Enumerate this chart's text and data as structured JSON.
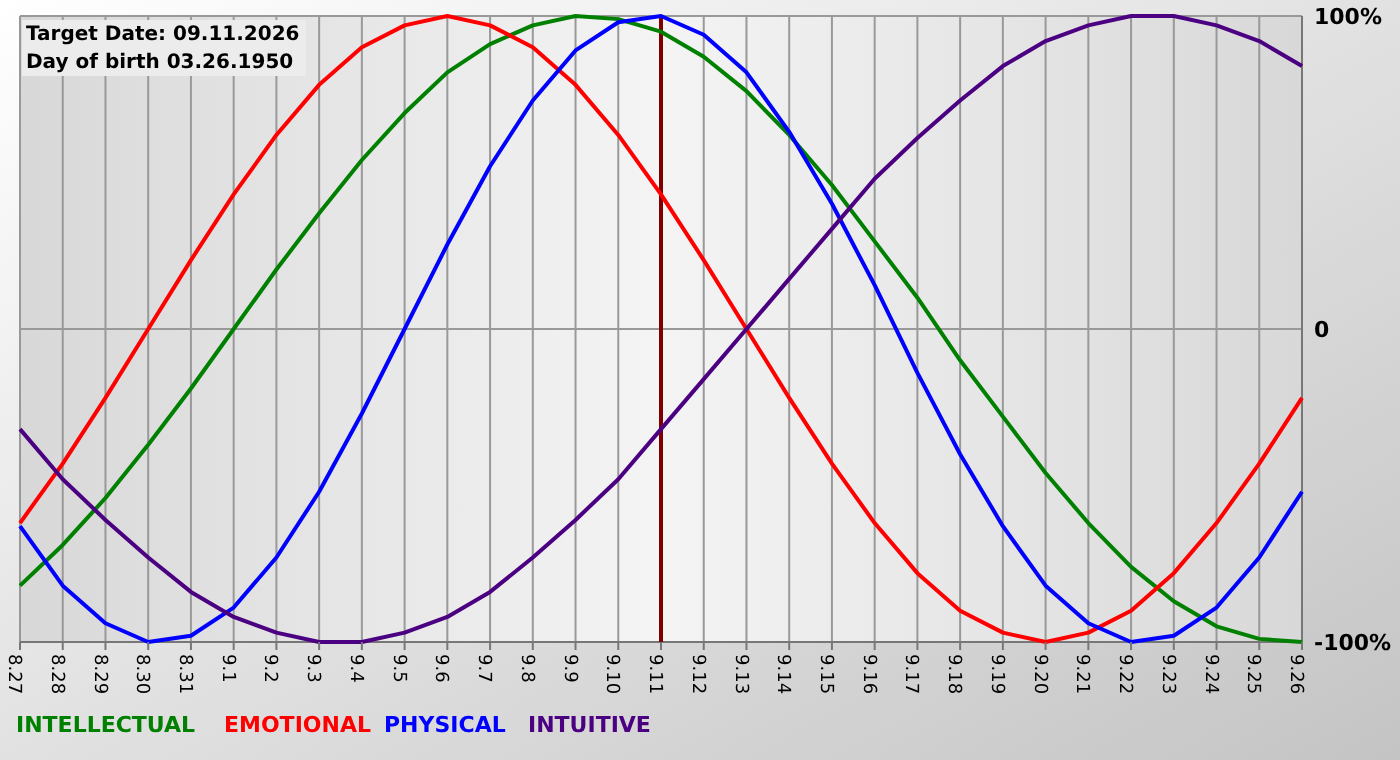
{
  "chart_data": {
    "type": "line",
    "categories": [
      "8.27",
      "8.28",
      "8.29",
      "8.30",
      "8.31",
      "9.1",
      "9.2",
      "9.3",
      "9.4",
      "9.5",
      "9.6",
      "9.7",
      "9.8",
      "9.9",
      "9.10",
      "9.11",
      "9.12",
      "9.13",
      "9.14",
      "9.15",
      "9.16",
      "9.17",
      "9.18",
      "9.19",
      "9.20",
      "9.21",
      "9.22",
      "9.23",
      "9.24",
      "9.25",
      "9.26"
    ],
    "series": [
      {
        "name": "INTELLECTUAL",
        "color": "#008000",
        "values": [
          -82,
          -69,
          -54,
          -37,
          -19,
          0,
          19,
          37,
          54,
          69,
          82,
          91,
          97,
          100,
          99,
          95,
          87,
          76,
          62,
          46,
          28,
          10,
          -10,
          -28,
          -46,
          -62,
          -76,
          -87,
          -95,
          -99,
          -100
        ]
      },
      {
        "name": "EMOTIONAL",
        "color": "#ff0000",
        "values": [
          -62,
          -43,
          -22,
          0,
          22,
          43,
          62,
          78,
          90,
          97,
          100,
          97,
          90,
          78,
          62,
          43,
          22,
          0,
          -22,
          -43,
          -62,
          -78,
          -90,
          -97,
          -100,
          -97,
          -90,
          -78,
          -62,
          -43,
          -22
        ]
      },
      {
        "name": "PHYSICAL",
        "color": "#0000ff",
        "values": [
          -63,
          -82,
          -94,
          -100,
          -98,
          -89,
          -73,
          -52,
          -27,
          0,
          27,
          52,
          73,
          89,
          98,
          100,
          94,
          82,
          63,
          40,
          14,
          -14,
          -40,
          -63,
          -82,
          -94,
          -100,
          -98,
          -89,
          -73,
          -52
        ]
      },
      {
        "name": "INTUITIVE",
        "color": "#4b0082",
        "values": [
          -32,
          -48,
          -61,
          -73,
          -84,
          -92,
          -97,
          -100,
          -100,
          -97,
          -92,
          -84,
          -73,
          -61,
          -48,
          -32,
          -16,
          0,
          16,
          32,
          48,
          61,
          73,
          84,
          92,
          97,
          100,
          100,
          97,
          92,
          84
        ]
      }
    ],
    "ylim": [
      -100,
      100
    ],
    "yticks": [
      {
        "value": -100,
        "label": "-100%"
      },
      0,
      {
        "value": 100,
        "label": "100%"
      }
    ],
    "grid": true,
    "legend": "bottom left",
    "ref_lines": [
      {
        "axis": "x",
        "value": "9.11",
        "color": "#800000"
      }
    ],
    "annotations": [
      "Target Date: 09.11.2026",
      "Day of birth 03.26.1950"
    ]
  }
}
